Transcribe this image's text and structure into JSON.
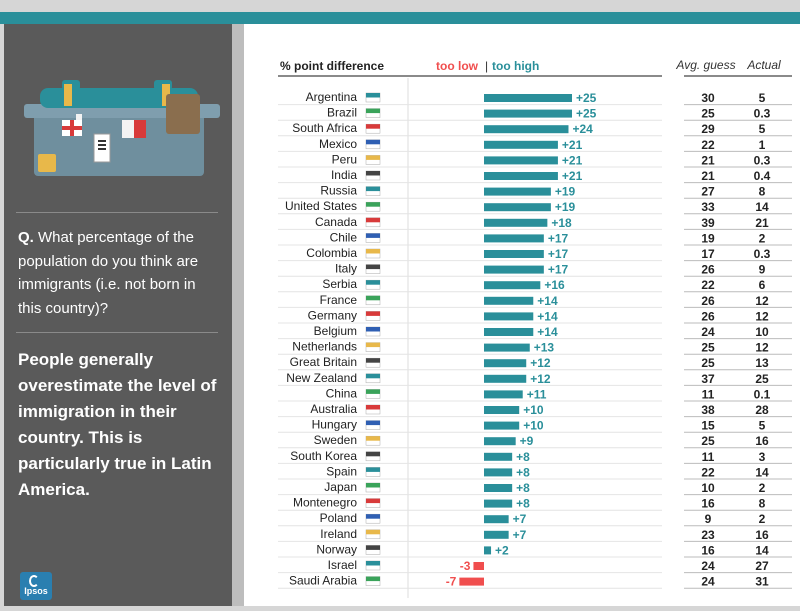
{
  "sidebar": {
    "question_prefix": "Q.",
    "question": "What percentage of the population do you think are immigrants  (i.e. not born in this country)?",
    "conclusion": "People generally overestimate the level of immigration in their country. This is particularly true in Latin America.",
    "logo_text": "Ipsos"
  },
  "colors": {
    "high": "#2a8f9a",
    "low": "#f04e4e",
    "sidebar": "#5a5a5a",
    "band": "#2a8f9a"
  },
  "chart_data": {
    "type": "bar",
    "orientation": "horizontal",
    "header": "% point difference",
    "legend_low": "too low",
    "legend_sep": "|",
    "legend_high": "too high",
    "col_guess": "Avg. guess",
    "col_actual": "Actual",
    "xlim": [
      -10,
      25
    ],
    "rows": [
      {
        "country": "Argentina",
        "diff": 25,
        "label": "+25",
        "guess": "30",
        "actual": "5"
      },
      {
        "country": "Brazil",
        "diff": 25,
        "label": "+25",
        "guess": "25",
        "actual": "0.3"
      },
      {
        "country": "South Africa",
        "diff": 24,
        "label": "+24",
        "guess": "29",
        "actual": "5"
      },
      {
        "country": "Mexico",
        "diff": 21,
        "label": "+21",
        "guess": "22",
        "actual": "1"
      },
      {
        "country": "Peru",
        "diff": 21,
        "label": "+21",
        "guess": "21",
        "actual": "0.3"
      },
      {
        "country": "India",
        "diff": 21,
        "label": "+21",
        "guess": "21",
        "actual": "0.4"
      },
      {
        "country": "Russia",
        "diff": 19,
        "label": "+19",
        "guess": "27",
        "actual": "8"
      },
      {
        "country": "United States",
        "diff": 19,
        "label": "+19",
        "guess": "33",
        "actual": "14"
      },
      {
        "country": "Canada",
        "diff": 18,
        "label": "+18",
        "guess": "39",
        "actual": "21"
      },
      {
        "country": "Chile",
        "diff": 17,
        "label": "+17",
        "guess": "19",
        "actual": "2"
      },
      {
        "country": "Colombia",
        "diff": 17,
        "label": "+17",
        "guess": "17",
        "actual": "0.3"
      },
      {
        "country": "Italy",
        "diff": 17,
        "label": "+17",
        "guess": "26",
        "actual": "9"
      },
      {
        "country": "Serbia",
        "diff": 16,
        "label": "+16",
        "guess": "22",
        "actual": "6"
      },
      {
        "country": "France",
        "diff": 14,
        "label": "+14",
        "guess": "26",
        "actual": "12"
      },
      {
        "country": "Germany",
        "diff": 14,
        "label": "+14",
        "guess": "26",
        "actual": "12"
      },
      {
        "country": "Belgium",
        "diff": 14,
        "label": "+14",
        "guess": "24",
        "actual": "10"
      },
      {
        "country": "Netherlands",
        "diff": 13,
        "label": "+13",
        "guess": "25",
        "actual": "12"
      },
      {
        "country": "Great Britain",
        "diff": 12,
        "label": "+12",
        "guess": "25",
        "actual": "13"
      },
      {
        "country": "New Zealand",
        "diff": 12,
        "label": "+12",
        "guess": "37",
        "actual": "25"
      },
      {
        "country": "China",
        "diff": 11,
        "label": "+11",
        "guess": "11",
        "actual": "0.1"
      },
      {
        "country": "Australia",
        "diff": 10,
        "label": "+10",
        "guess": "38",
        "actual": "28"
      },
      {
        "country": "Hungary",
        "diff": 10,
        "label": "+10",
        "guess": "15",
        "actual": "5"
      },
      {
        "country": "Sweden",
        "diff": 9,
        "label": "+9",
        "guess": "25",
        "actual": "16"
      },
      {
        "country": "South Korea",
        "diff": 8,
        "label": "+8",
        "guess": "11",
        "actual": "3"
      },
      {
        "country": "Spain",
        "diff": 8,
        "label": "+8",
        "guess": "22",
        "actual": "14"
      },
      {
        "country": "Japan",
        "diff": 8,
        "label": "+8",
        "guess": "10",
        "actual": "2"
      },
      {
        "country": "Montenegro",
        "diff": 8,
        "label": "+8",
        "guess": "16",
        "actual": "8"
      },
      {
        "country": "Poland",
        "diff": 7,
        "label": "+7",
        "guess": "9",
        "actual": "2"
      },
      {
        "country": "Ireland",
        "diff": 7,
        "label": "+7",
        "guess": "23",
        "actual": "16"
      },
      {
        "country": "Norway",
        "diff": 2,
        "label": "+2",
        "guess": "16",
        "actual": "14"
      },
      {
        "country": "Israel",
        "diff": -3,
        "label": "-3",
        "guess": "24",
        "actual": "27"
      },
      {
        "country": "Saudi Arabia",
        "diff": -7,
        "label": "-7",
        "guess": "24",
        "actual": "31"
      }
    ]
  }
}
